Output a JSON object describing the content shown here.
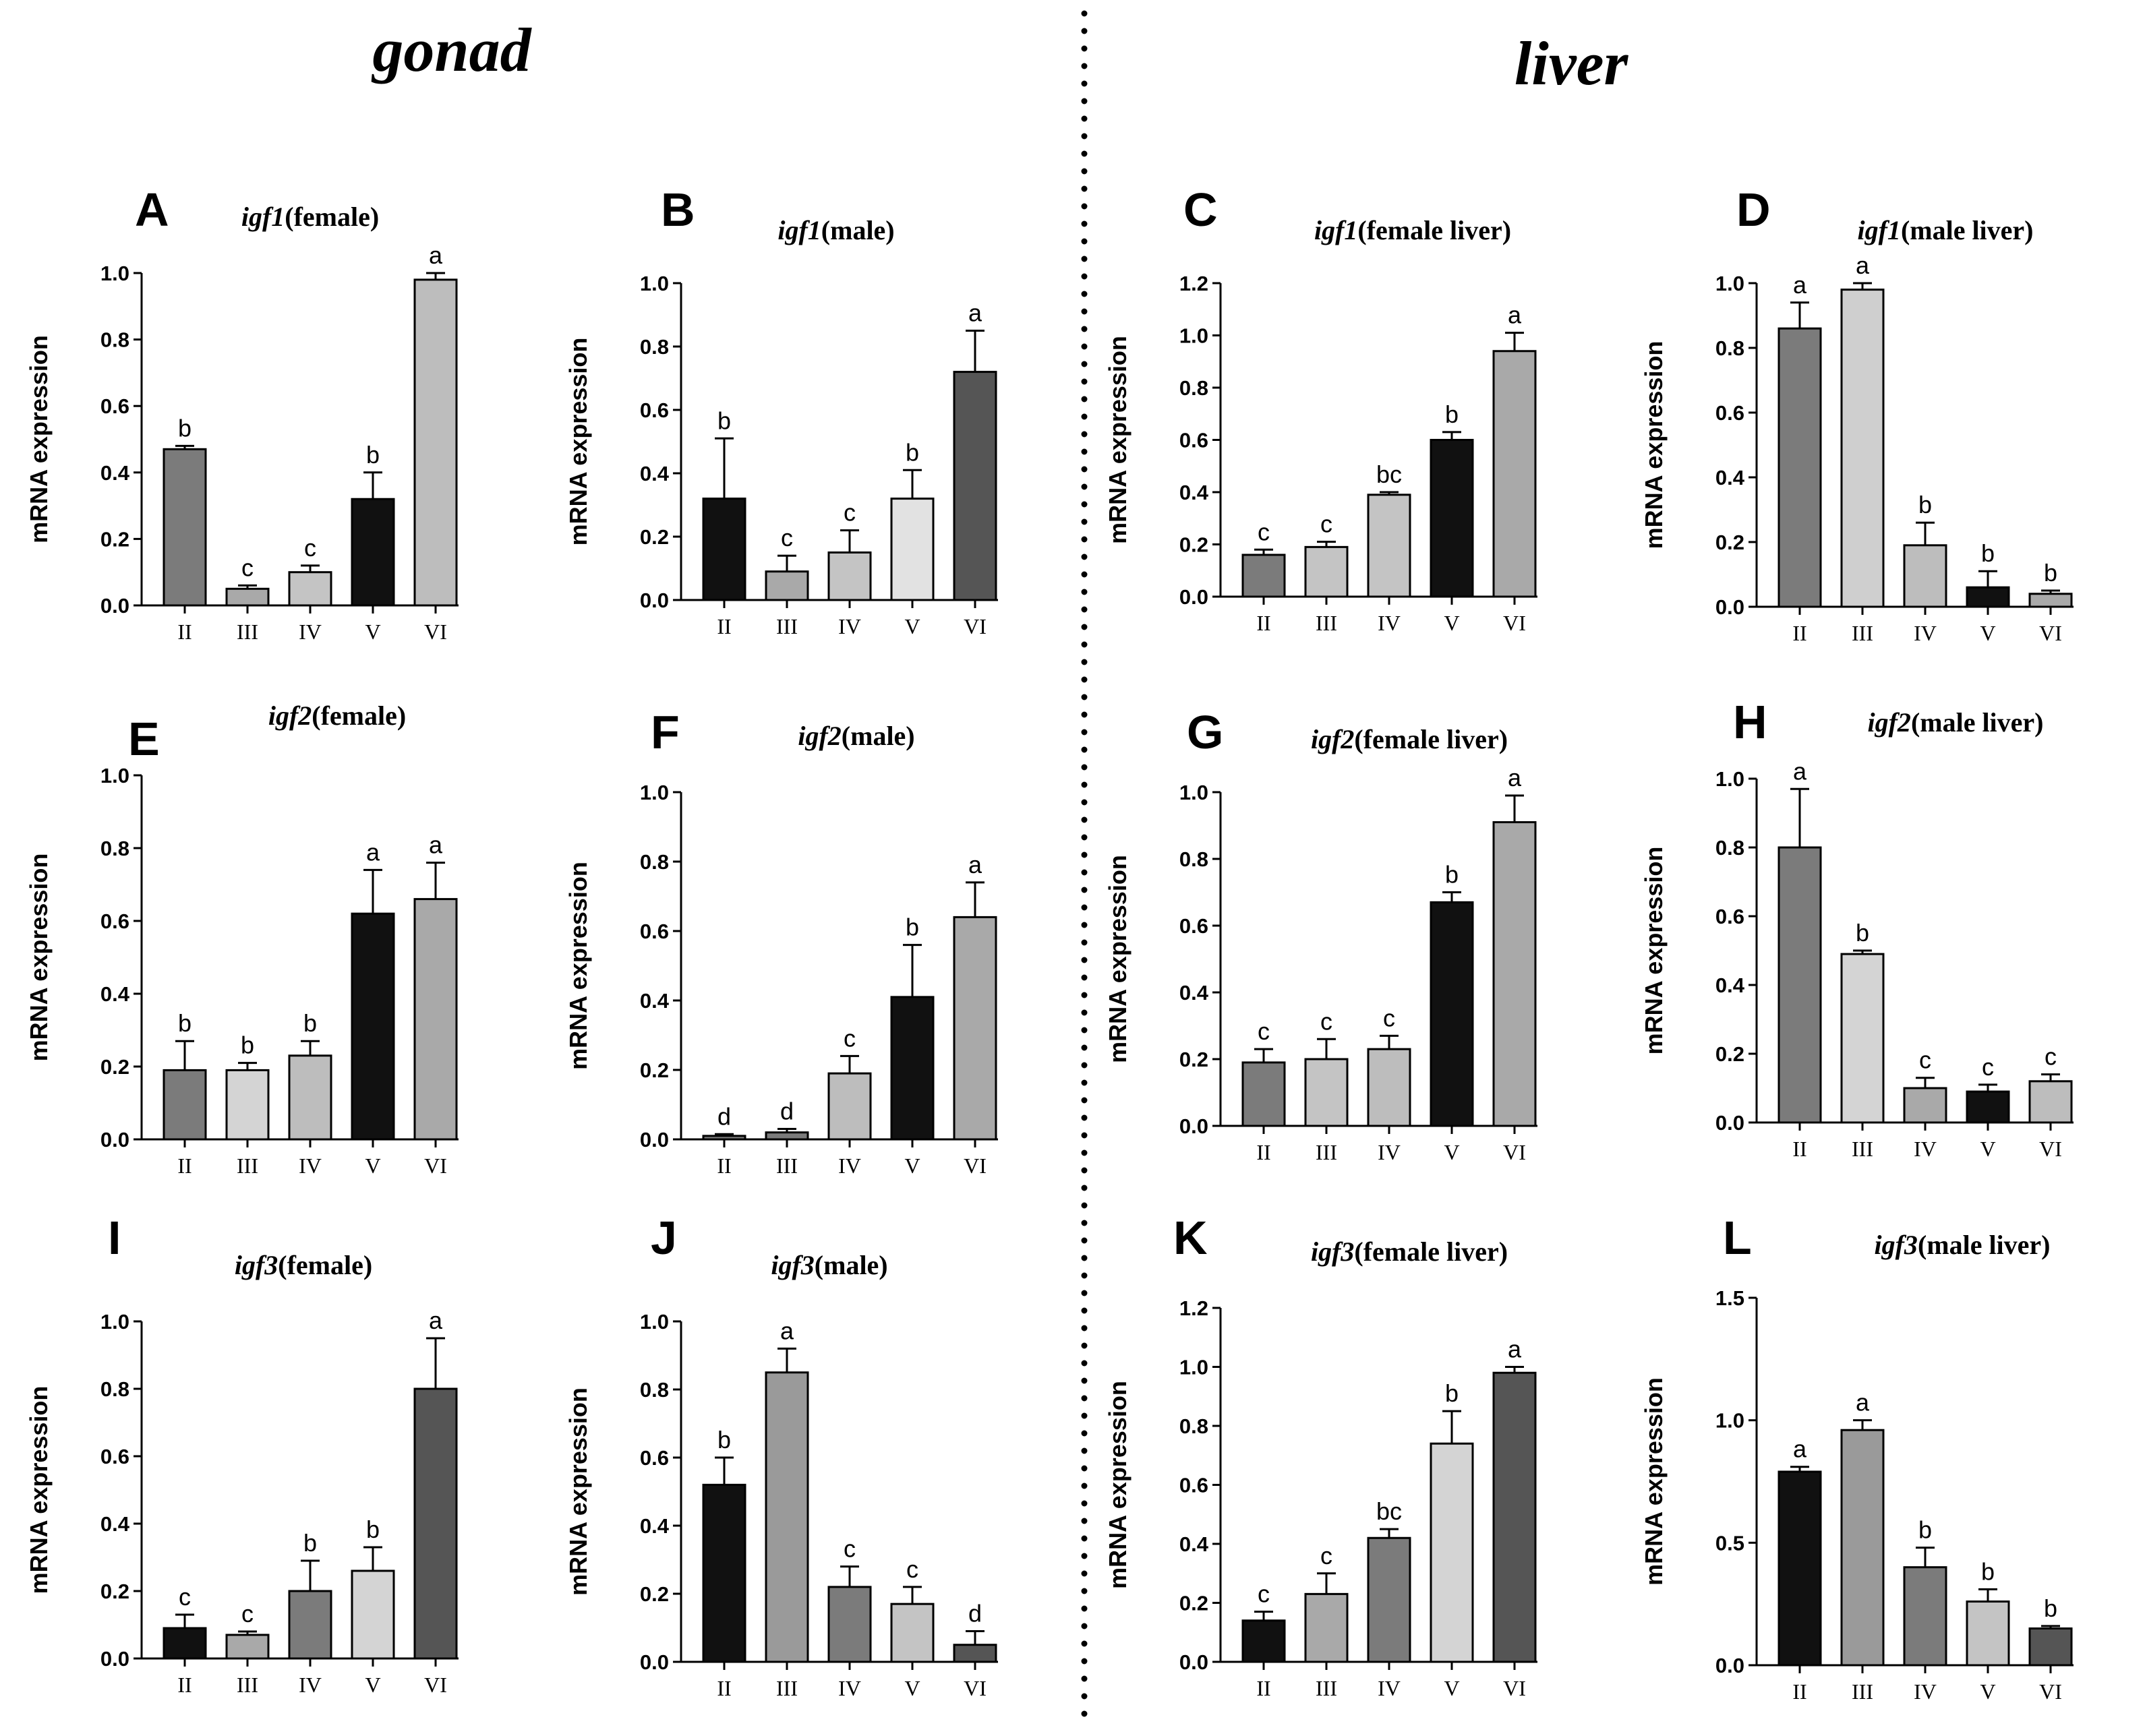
{
  "sections": {
    "left": "gonad",
    "right": "liver"
  },
  "chart_data": [
    {
      "id": "A",
      "type": "bar",
      "gene": "igf1",
      "title_rest": "(female)",
      "ylabel": "mRNA expression",
      "categories": [
        "II",
        "III",
        "IV",
        "V",
        "VI"
      ],
      "values": [
        0.47,
        0.05,
        0.1,
        0.32,
        0.98
      ],
      "errors": [
        0.01,
        0.01,
        0.02,
        0.08,
        0.02
      ],
      "sig": [
        "b",
        "c",
        "c",
        "b",
        "a"
      ],
      "ylim": [
        0,
        1.0
      ],
      "yticks": [
        0,
        0.2,
        0.4,
        0.6,
        0.8,
        1.0
      ],
      "ytick_labels": [
        "0.0",
        "0.2",
        "0.4",
        "0.6",
        "0.8",
        "1.0"
      ],
      "colors": [
        "#7b7b7b",
        "#a9a9a9",
        "#c4c4c4",
        "#111111",
        "#bdbdbd"
      ]
    },
    {
      "id": "B",
      "type": "bar",
      "gene": "igf1",
      "title_rest": "(male)",
      "ylabel": "mRNA expression",
      "categories": [
        "II",
        "III",
        "IV",
        "V",
        "VI"
      ],
      "values": [
        0.32,
        0.09,
        0.15,
        0.32,
        0.72
      ],
      "errors": [
        0.19,
        0.05,
        0.07,
        0.09,
        0.13
      ],
      "sig": [
        "b",
        "c",
        "c",
        "b",
        "a"
      ],
      "ylim": [
        0,
        1.0
      ],
      "yticks": [
        0,
        0.2,
        0.4,
        0.6,
        0.8,
        1.0
      ],
      "ytick_labels": [
        "0.0",
        "0.2",
        "0.4",
        "0.6",
        "0.8",
        "1.0"
      ],
      "colors": [
        "#111111",
        "#a9a9a9",
        "#c4c4c4",
        "#e2e2e2",
        "#555555"
      ]
    },
    {
      "id": "C",
      "type": "bar",
      "gene": "igf1",
      "title_rest": "(female liver)",
      "ylabel": "mRNA expression",
      "categories": [
        "II",
        "III",
        "IV",
        "V",
        "VI"
      ],
      "values": [
        0.16,
        0.19,
        0.39,
        0.6,
        0.94
      ],
      "errors": [
        0.02,
        0.02,
        0.01,
        0.03,
        0.07
      ],
      "sig": [
        "c",
        "c",
        "bc",
        "b",
        "a"
      ],
      "ylim": [
        0,
        1.2
      ],
      "yticks": [
        0,
        0.2,
        0.4,
        0.6,
        0.8,
        1.0,
        1.2
      ],
      "ytick_labels": [
        "0.0",
        "0.2",
        "0.4",
        "0.6",
        "0.8",
        "1.0",
        "1.2"
      ],
      "colors": [
        "#7b7b7b",
        "#c4c4c4",
        "#c4c4c4",
        "#111111",
        "#a9a9a9"
      ]
    },
    {
      "id": "D",
      "type": "bar",
      "gene": "igf1",
      "title_rest": "(male liver)",
      "ylabel": "mRNA expression",
      "categories": [
        "II",
        "III",
        "IV",
        "V",
        "VI"
      ],
      "values": [
        0.86,
        0.98,
        0.19,
        0.06,
        0.04
      ],
      "errors": [
        0.08,
        0.02,
        0.07,
        0.05,
        0.01
      ],
      "sig": [
        "a",
        "a",
        "b",
        "b",
        "b"
      ],
      "ylim": [
        0,
        1.0
      ],
      "yticks": [
        0,
        0.2,
        0.4,
        0.6,
        0.8,
        1.0
      ],
      "ytick_labels": [
        "0.0",
        "0.2",
        "0.4",
        "0.6",
        "0.8",
        "1.0"
      ],
      "colors": [
        "#7b7b7b",
        "#cfcfcf",
        "#bdbdbd",
        "#111111",
        "#a9a9a9"
      ]
    },
    {
      "id": "E",
      "type": "bar",
      "gene": "igf2",
      "title_rest": "(female)",
      "ylabel": "mRNA expression",
      "categories": [
        "II",
        "III",
        "IV",
        "V",
        "VI"
      ],
      "values": [
        0.19,
        0.19,
        0.23,
        0.62,
        0.66
      ],
      "errors": [
        0.08,
        0.02,
        0.04,
        0.12,
        0.1
      ],
      "sig": [
        "b",
        "b",
        "b",
        "a",
        "a"
      ],
      "ylim": [
        0,
        1.0
      ],
      "yticks": [
        0,
        0.2,
        0.4,
        0.6,
        0.8,
        1.0
      ],
      "ytick_labels": [
        "0.0",
        "0.2",
        "0.4",
        "0.6",
        "0.8",
        "1.0"
      ],
      "colors": [
        "#7b7b7b",
        "#d4d4d4",
        "#bdbdbd",
        "#111111",
        "#a9a9a9"
      ]
    },
    {
      "id": "F",
      "type": "bar",
      "gene": "igf2",
      "title_rest": "(male)",
      "ylabel": "mRNA expression",
      "categories": [
        "II",
        "III",
        "IV",
        "V",
        "VI"
      ],
      "values": [
        0.01,
        0.02,
        0.19,
        0.41,
        0.64
      ],
      "errors": [
        0.005,
        0.01,
        0.05,
        0.15,
        0.1
      ],
      "sig": [
        "d",
        "d",
        "c",
        "b",
        "a"
      ],
      "ylim": [
        0,
        1.0
      ],
      "yticks": [
        0,
        0.2,
        0.4,
        0.6,
        0.8,
        1.0
      ],
      "ytick_labels": [
        "0.0",
        "0.2",
        "0.4",
        "0.6",
        "0.8",
        "1.0"
      ],
      "colors": [
        "#7b7b7b",
        "#7b7b7b",
        "#bdbdbd",
        "#111111",
        "#a9a9a9"
      ]
    },
    {
      "id": "G",
      "type": "bar",
      "gene": "igf2",
      "title_rest": "(female liver)",
      "ylabel": "mRNA expression",
      "categories": [
        "II",
        "III",
        "IV",
        "V",
        "VI"
      ],
      "values": [
        0.19,
        0.2,
        0.23,
        0.67,
        0.91
      ],
      "errors": [
        0.04,
        0.06,
        0.04,
        0.03,
        0.08
      ],
      "sig": [
        "c",
        "c",
        "c",
        "b",
        "a"
      ],
      "ylim": [
        0,
        1.0
      ],
      "yticks": [
        0,
        0.2,
        0.4,
        0.6,
        0.8,
        1.0
      ],
      "ytick_labels": [
        "0.0",
        "0.2",
        "0.4",
        "0.6",
        "0.8",
        "1.0"
      ],
      "colors": [
        "#7b7b7b",
        "#c4c4c4",
        "#bdbdbd",
        "#111111",
        "#a9a9a9"
      ]
    },
    {
      "id": "H",
      "type": "bar",
      "gene": "igf2",
      "title_rest": "(male liver)",
      "ylabel": "mRNA expression",
      "categories": [
        "II",
        "III",
        "IV",
        "V",
        "VI"
      ],
      "values": [
        0.8,
        0.49,
        0.1,
        0.09,
        0.12
      ],
      "errors": [
        0.17,
        0.01,
        0.03,
        0.02,
        0.02
      ],
      "sig": [
        "a",
        "b",
        "c",
        "c",
        "c"
      ],
      "ylim": [
        0,
        1.0
      ],
      "yticks": [
        0,
        0.2,
        0.4,
        0.6,
        0.8,
        1.0
      ],
      "ytick_labels": [
        "0.0",
        "0.2",
        "0.4",
        "0.6",
        "0.8",
        "1.0"
      ],
      "colors": [
        "#7b7b7b",
        "#d4d4d4",
        "#a9a9a9",
        "#111111",
        "#bdbdbd"
      ]
    },
    {
      "id": "I",
      "type": "bar",
      "gene": "igf3",
      "title_rest": "(female)",
      "ylabel": "mRNA expression",
      "categories": [
        "II",
        "III",
        "IV",
        "V",
        "VI"
      ],
      "values": [
        0.09,
        0.07,
        0.2,
        0.26,
        0.8
      ],
      "errors": [
        0.04,
        0.01,
        0.09,
        0.07,
        0.15
      ],
      "sig": [
        "c",
        "c",
        "b",
        "b",
        "a"
      ],
      "ylim": [
        0,
        1.0
      ],
      "yticks": [
        0,
        0.2,
        0.4,
        0.6,
        0.8,
        1.0
      ],
      "ytick_labels": [
        "0.0",
        "0.2",
        "0.4",
        "0.6",
        "0.8",
        "1.0"
      ],
      "colors": [
        "#111111",
        "#a9a9a9",
        "#7b7b7b",
        "#d4d4d4",
        "#555555"
      ]
    },
    {
      "id": "J",
      "type": "bar",
      "gene": "igf3",
      "title_rest": "(male)",
      "ylabel": "mRNA expression",
      "categories": [
        "II",
        "III",
        "IV",
        "V",
        "VI"
      ],
      "values": [
        0.52,
        0.85,
        0.22,
        0.17,
        0.05
      ],
      "errors": [
        0.08,
        0.07,
        0.06,
        0.05,
        0.04
      ],
      "sig": [
        "b",
        "a",
        "c",
        "c",
        "d"
      ],
      "ylim": [
        0,
        1.0
      ],
      "yticks": [
        0,
        0.2,
        0.4,
        0.6,
        0.8,
        1.0
      ],
      "ytick_labels": [
        "0.0",
        "0.2",
        "0.4",
        "0.6",
        "0.8",
        "1.0"
      ],
      "colors": [
        "#111111",
        "#9a9a9a",
        "#7b7b7b",
        "#c4c4c4",
        "#555555"
      ]
    },
    {
      "id": "K",
      "type": "bar",
      "gene": "igf3",
      "title_rest": "(female liver)",
      "ylabel": "mRNA expression",
      "categories": [
        "II",
        "III",
        "IV",
        "V",
        "VI"
      ],
      "values": [
        0.14,
        0.23,
        0.42,
        0.74,
        0.98
      ],
      "errors": [
        0.03,
        0.07,
        0.03,
        0.11,
        0.02
      ],
      "sig": [
        "c",
        "c",
        "bc",
        "b",
        "a"
      ],
      "ylim": [
        0,
        1.2
      ],
      "yticks": [
        0,
        0.2,
        0.4,
        0.6,
        0.8,
        1.0,
        1.2
      ],
      "ytick_labels": [
        "0.0",
        "0.2",
        "0.4",
        "0.6",
        "0.8",
        "1.0",
        "1.2"
      ],
      "colors": [
        "#111111",
        "#a9a9a9",
        "#7b7b7b",
        "#d4d4d4",
        "#555555"
      ]
    },
    {
      "id": "L",
      "type": "bar",
      "gene": "igf3",
      "title_rest": "(male liver)",
      "ylabel": "mRNA expression",
      "categories": [
        "II",
        "III",
        "IV",
        "V",
        "VI"
      ],
      "values": [
        0.79,
        0.96,
        0.4,
        0.26,
        0.15
      ],
      "errors": [
        0.02,
        0.04,
        0.08,
        0.05,
        0.01
      ],
      "sig": [
        "a",
        "a",
        "b",
        "b",
        "b"
      ],
      "ylim": [
        0,
        1.5
      ],
      "yticks": [
        0,
        0.5,
        1.0,
        1.5
      ],
      "ytick_labels": [
        "0.0",
        "0.5",
        "1.0",
        "1.5"
      ],
      "colors": [
        "#111111",
        "#9a9a9a",
        "#7b7b7b",
        "#c4c4c4",
        "#555555"
      ]
    }
  ]
}
